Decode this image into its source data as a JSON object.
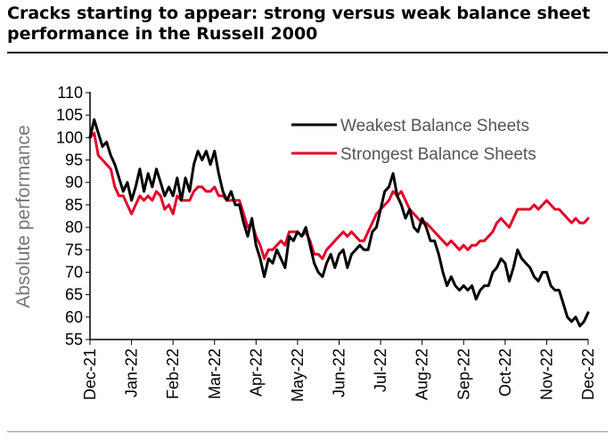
{
  "page": {
    "title": "Cracks starting to appear: strong versus weak balance sheet performance in the Russell 2000"
  },
  "chart_data": {
    "type": "line",
    "title": "Cracks starting to appear: strong versus weak balance sheet performance in the Russell 2000",
    "xlabel": "",
    "ylabel": "Absolute performance",
    "ylim": [
      55,
      110
    ],
    "yticks": [
      55,
      60,
      65,
      70,
      75,
      80,
      85,
      90,
      95,
      100,
      105,
      110
    ],
    "xlim": [
      0,
      12
    ],
    "xtick_labels": [
      "Dec-21",
      "Jan-22",
      "Feb-22",
      "Mar-22",
      "Apr-22",
      "May-22",
      "Jun-22",
      "Jul-22",
      "Aug-22",
      "Sep-22",
      "Oct-22",
      "Nov-22",
      "Dec-22"
    ],
    "grid": false,
    "legend_position": "top-right",
    "series": [
      {
        "name": "Weakest Balance Sheets",
        "color": "#000000",
        "points": [
          [
            0,
            100
          ],
          [
            0.1,
            104
          ],
          [
            0.2,
            101
          ],
          [
            0.3,
            98
          ],
          [
            0.4,
            99
          ],
          [
            0.5,
            96
          ],
          [
            0.6,
            94
          ],
          [
            0.7,
            91
          ],
          [
            0.8,
            88
          ],
          [
            0.9,
            90
          ],
          [
            1,
            86
          ],
          [
            1.1,
            89
          ],
          [
            1.2,
            93
          ],
          [
            1.3,
            88
          ],
          [
            1.4,
            92
          ],
          [
            1.5,
            89
          ],
          [
            1.6,
            93
          ],
          [
            1.7,
            90
          ],
          [
            1.8,
            87
          ],
          [
            1.9,
            89
          ],
          [
            2,
            87
          ],
          [
            2.1,
            91
          ],
          [
            2.2,
            86
          ],
          [
            2.3,
            91
          ],
          [
            2.4,
            88
          ],
          [
            2.5,
            94
          ],
          [
            2.6,
            97
          ],
          [
            2.7,
            95
          ],
          [
            2.8,
            97
          ],
          [
            2.9,
            94
          ],
          [
            3,
            97
          ],
          [
            3.1,
            92
          ],
          [
            3.2,
            88
          ],
          [
            3.3,
            86
          ],
          [
            3.4,
            88
          ],
          [
            3.5,
            85
          ],
          [
            3.6,
            85
          ],
          [
            3.7,
            81
          ],
          [
            3.8,
            78
          ],
          [
            3.9,
            82
          ],
          [
            4,
            76
          ],
          [
            4.1,
            73
          ],
          [
            4.2,
            69
          ],
          [
            4.3,
            73
          ],
          [
            4.4,
            72
          ],
          [
            4.5,
            75
          ],
          [
            4.6,
            73
          ],
          [
            4.7,
            71
          ],
          [
            4.8,
            78
          ],
          [
            4.9,
            77
          ],
          [
            5,
            79
          ],
          [
            5.1,
            78
          ],
          [
            5.2,
            80
          ],
          [
            5.3,
            76
          ],
          [
            5.4,
            72
          ],
          [
            5.5,
            70
          ],
          [
            5.6,
            69
          ],
          [
            5.7,
            72
          ],
          [
            5.8,
            74
          ],
          [
            5.9,
            71
          ],
          [
            6,
            74
          ],
          [
            6.1,
            75
          ],
          [
            6.2,
            71
          ],
          [
            6.3,
            74
          ],
          [
            6.4,
            75
          ],
          [
            6.5,
            76
          ],
          [
            6.6,
            75
          ],
          [
            6.7,
            75
          ],
          [
            6.8,
            79
          ],
          [
            6.9,
            80
          ],
          [
            7,
            84
          ],
          [
            7.1,
            88
          ],
          [
            7.2,
            89
          ],
          [
            7.3,
            92
          ],
          [
            7.4,
            87
          ],
          [
            7.5,
            85
          ],
          [
            7.6,
            82
          ],
          [
            7.7,
            84
          ],
          [
            7.8,
            80
          ],
          [
            7.9,
            79
          ],
          [
            8,
            82
          ],
          [
            8.1,
            80
          ],
          [
            8.2,
            77
          ],
          [
            8.3,
            77
          ],
          [
            8.4,
            74
          ],
          [
            8.5,
            70
          ],
          [
            8.6,
            67
          ],
          [
            8.7,
            69
          ],
          [
            8.8,
            67
          ],
          [
            8.9,
            66
          ],
          [
            9,
            67
          ],
          [
            9.1,
            66
          ],
          [
            9.2,
            67
          ],
          [
            9.3,
            64
          ],
          [
            9.4,
            66
          ],
          [
            9.5,
            67
          ],
          [
            9.6,
            67
          ],
          [
            9.7,
            70
          ],
          [
            9.8,
            71
          ],
          [
            9.9,
            73
          ],
          [
            10,
            72
          ],
          [
            10.1,
            68
          ],
          [
            10.2,
            71
          ],
          [
            10.3,
            75
          ],
          [
            10.4,
            73
          ],
          [
            10.5,
            72
          ],
          [
            10.6,
            71
          ],
          [
            10.7,
            69
          ],
          [
            10.8,
            68
          ],
          [
            10.9,
            70
          ],
          [
            11,
            70
          ],
          [
            11.1,
            67
          ],
          [
            11.2,
            66
          ],
          [
            11.3,
            66
          ],
          [
            11.4,
            63
          ],
          [
            11.5,
            60
          ],
          [
            11.6,
            59
          ],
          [
            11.7,
            60
          ],
          [
            11.8,
            58
          ],
          [
            11.9,
            59
          ],
          [
            12,
            61
          ]
        ]
      },
      {
        "name": "Strongest Balance Sheets",
        "color": "#e4002b",
        "points": [
          [
            0,
            100
          ],
          [
            0.1,
            101
          ],
          [
            0.2,
            96
          ],
          [
            0.3,
            95
          ],
          [
            0.4,
            94
          ],
          [
            0.5,
            93
          ],
          [
            0.6,
            89
          ],
          [
            0.7,
            87
          ],
          [
            0.8,
            87
          ],
          [
            0.9,
            85
          ],
          [
            1,
            83
          ],
          [
            1.1,
            85
          ],
          [
            1.2,
            87
          ],
          [
            1.3,
            86
          ],
          [
            1.4,
            87
          ],
          [
            1.5,
            86
          ],
          [
            1.6,
            88
          ],
          [
            1.7,
            87
          ],
          [
            1.8,
            84
          ],
          [
            1.9,
            85
          ],
          [
            2,
            83
          ],
          [
            2.1,
            87
          ],
          [
            2.2,
            86
          ],
          [
            2.3,
            86
          ],
          [
            2.4,
            86
          ],
          [
            2.5,
            88
          ],
          [
            2.6,
            89
          ],
          [
            2.7,
            89
          ],
          [
            2.8,
            88
          ],
          [
            2.9,
            88
          ],
          [
            3,
            89
          ],
          [
            3.1,
            87
          ],
          [
            3.2,
            87
          ],
          [
            3.3,
            86
          ],
          [
            3.4,
            86
          ],
          [
            3.5,
            86
          ],
          [
            3.6,
            86
          ],
          [
            3.7,
            83
          ],
          [
            3.8,
            80
          ],
          [
            3.9,
            81
          ],
          [
            4,
            78
          ],
          [
            4.1,
            76
          ],
          [
            4.2,
            73
          ],
          [
            4.3,
            75
          ],
          [
            4.4,
            75
          ],
          [
            4.5,
            76
          ],
          [
            4.6,
            77
          ],
          [
            4.7,
            76
          ],
          [
            4.8,
            79
          ],
          [
            4.9,
            79
          ],
          [
            5,
            79
          ],
          [
            5.1,
            78
          ],
          [
            5.2,
            79
          ],
          [
            5.3,
            77
          ],
          [
            5.4,
            74
          ],
          [
            5.5,
            74
          ],
          [
            5.6,
            73
          ],
          [
            5.7,
            75
          ],
          [
            5.8,
            76
          ],
          [
            5.9,
            77
          ],
          [
            6,
            78
          ],
          [
            6.1,
            79
          ],
          [
            6.2,
            78
          ],
          [
            6.3,
            79
          ],
          [
            6.4,
            78
          ],
          [
            6.5,
            77
          ],
          [
            6.6,
            77
          ],
          [
            6.7,
            79
          ],
          [
            6.8,
            81
          ],
          [
            6.9,
            83
          ],
          [
            7,
            84
          ],
          [
            7.1,
            85
          ],
          [
            7.2,
            86
          ],
          [
            7.3,
            88
          ],
          [
            7.4,
            87
          ],
          [
            7.5,
            88
          ],
          [
            7.6,
            86
          ],
          [
            7.7,
            84
          ],
          [
            7.8,
            83
          ],
          [
            7.9,
            82
          ],
          [
            8,
            81
          ],
          [
            8.1,
            81
          ],
          [
            8.2,
            80
          ],
          [
            8.3,
            79
          ],
          [
            8.4,
            78
          ],
          [
            8.5,
            77
          ],
          [
            8.6,
            76
          ],
          [
            8.7,
            77
          ],
          [
            8.8,
            76
          ],
          [
            8.9,
            75
          ],
          [
            9,
            76
          ],
          [
            9.1,
            75
          ],
          [
            9.2,
            76
          ],
          [
            9.3,
            76
          ],
          [
            9.4,
            77
          ],
          [
            9.5,
            77
          ],
          [
            9.6,
            78
          ],
          [
            9.7,
            79
          ],
          [
            9.8,
            81
          ],
          [
            9.9,
            82
          ],
          [
            10,
            81
          ],
          [
            10.1,
            80
          ],
          [
            10.2,
            82
          ],
          [
            10.3,
            84
          ],
          [
            10.4,
            84
          ],
          [
            10.5,
            84
          ],
          [
            10.6,
            84
          ],
          [
            10.7,
            85
          ],
          [
            10.8,
            84
          ],
          [
            10.9,
            85
          ],
          [
            11,
            86
          ],
          [
            11.1,
            85
          ],
          [
            11.2,
            84
          ],
          [
            11.3,
            84
          ],
          [
            11.4,
            83
          ],
          [
            11.5,
            82
          ],
          [
            11.6,
            81
          ],
          [
            11.7,
            82
          ],
          [
            11.8,
            81
          ],
          [
            11.9,
            81
          ],
          [
            12,
            82
          ]
        ]
      }
    ]
  }
}
